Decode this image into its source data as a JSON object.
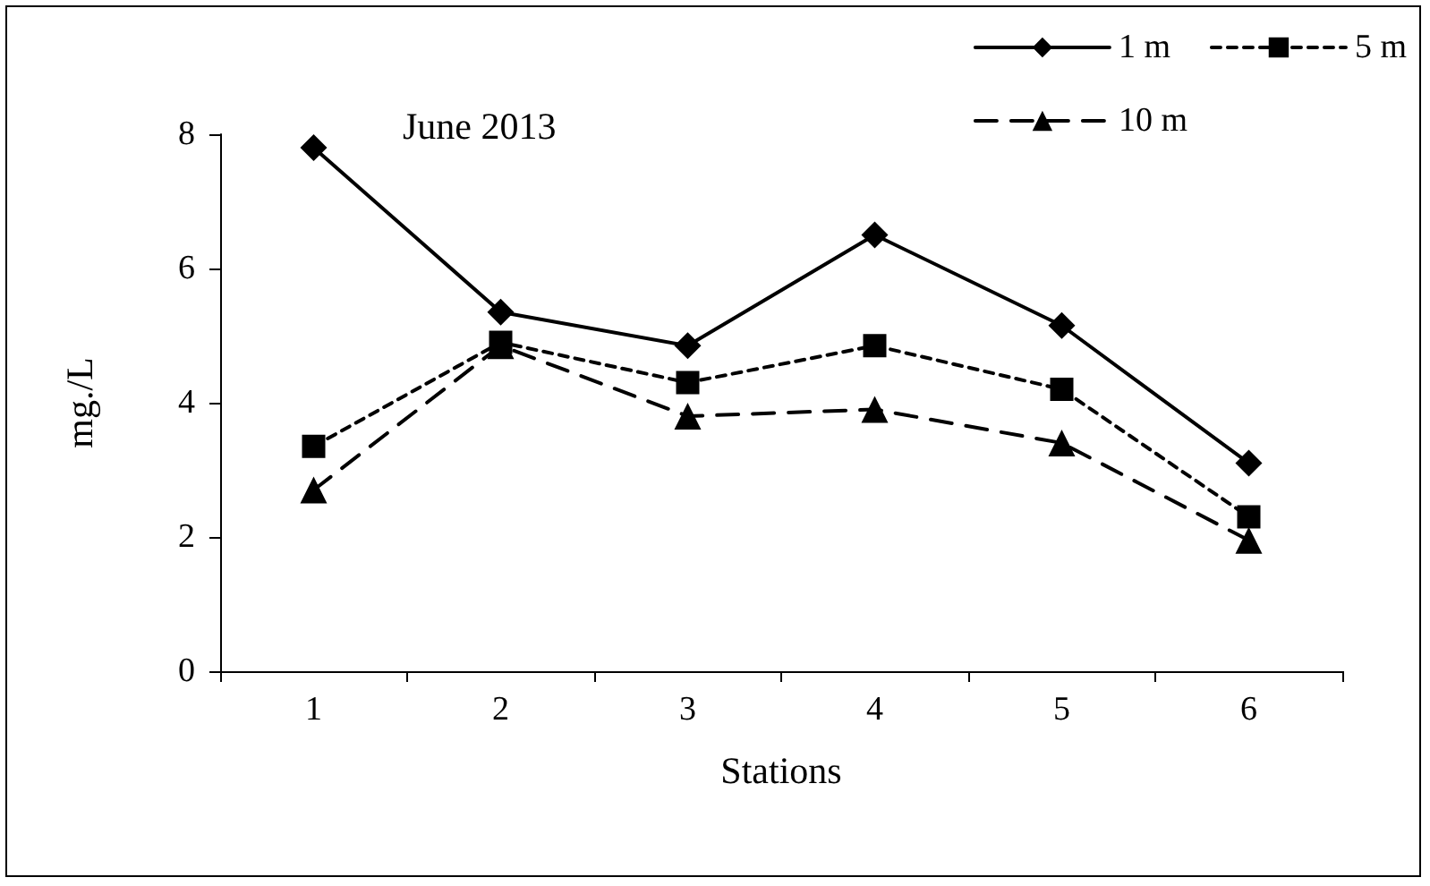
{
  "chart_data": {
    "type": "line",
    "title": "June 2013",
    "xlabel": "Stations",
    "ylabel": "mg./L",
    "categories": [
      "1",
      "2",
      "3",
      "4",
      "5",
      "6"
    ],
    "series": [
      {
        "name": "1 m",
        "color": "#000000",
        "marker": "diamond",
        "line_style": "solid",
        "values": [
          7.8,
          5.35,
          4.85,
          6.5,
          5.15,
          3.1
        ]
      },
      {
        "name": "5 m",
        "color": "#000000",
        "marker": "square",
        "line_style": "dotted",
        "values": [
          3.35,
          4.9,
          4.3,
          4.85,
          4.2,
          2.3
        ]
      },
      {
        "name": "10 m",
        "color": "#000000",
        "marker": "triangle",
        "line_style": "dashed",
        "values": [
          2.7,
          4.85,
          3.8,
          3.9,
          3.4,
          1.95
        ]
      }
    ],
    "ylim": [
      0,
      8
    ],
    "yticks": [
      0,
      2,
      4,
      6,
      8
    ],
    "grid": false,
    "legend": "top right"
  }
}
